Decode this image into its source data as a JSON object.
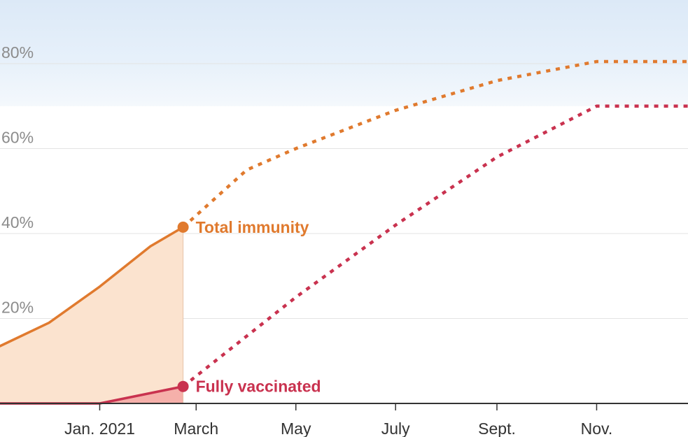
{
  "chart_data": {
    "type": "line",
    "x_ticks": [
      "Jan. 2021",
      "March",
      "May",
      "July",
      "Sept.",
      "Nov."
    ],
    "y_ticks": [
      "20%",
      "40%",
      "60%",
      "80%"
    ],
    "ylim": [
      0,
      95
    ],
    "grid": true,
    "band": {
      "from": 70,
      "to": 82
    },
    "series": [
      {
        "name": "Total immunity",
        "color": "#e07a2e",
        "fill": "#fbe3cf",
        "observed": [
          {
            "x": "2020-11-01",
            "y": 13.5
          },
          {
            "x": "2020-12-01",
            "y": 19
          },
          {
            "x": "2021-01-01",
            "y": 27.5
          },
          {
            "x": "2021-02-01",
            "y": 37
          },
          {
            "x": "2021-02-21",
            "y": 41.5
          }
        ],
        "projected": [
          {
            "x": "2021-02-21",
            "y": 41.5
          },
          {
            "x": "2021-04-01",
            "y": 55
          },
          {
            "x": "2021-05-01",
            "y": 60
          },
          {
            "x": "2021-07-01",
            "y": 69
          },
          {
            "x": "2021-09-01",
            "y": 76
          },
          {
            "x": "2021-11-01",
            "y": 80.5
          },
          {
            "x": "2021-12-31",
            "y": 80.5
          }
        ]
      },
      {
        "name": "Fully vaccinated",
        "color": "#c9324f",
        "fill": "#f5b0aa",
        "observed": [
          {
            "x": "2020-11-01",
            "y": 0
          },
          {
            "x": "2021-01-01",
            "y": 0
          },
          {
            "x": "2021-02-21",
            "y": 4
          }
        ],
        "projected": [
          {
            "x": "2021-02-21",
            "y": 4
          },
          {
            "x": "2021-05-01",
            "y": 25
          },
          {
            "x": "2021-07-01",
            "y": 42
          },
          {
            "x": "2021-09-01",
            "y": 58
          },
          {
            "x": "2021-11-01",
            "y": 70
          },
          {
            "x": "2021-12-31",
            "y": 70
          }
        ]
      }
    ]
  }
}
